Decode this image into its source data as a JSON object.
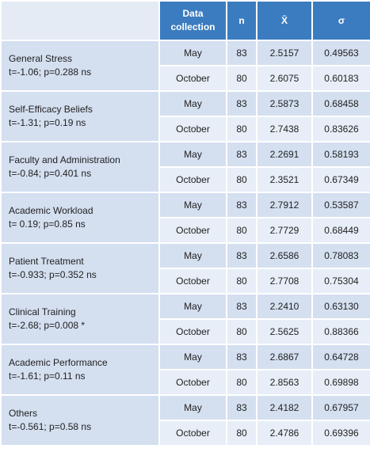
{
  "table": {
    "header": [
      "Data collection",
      "n",
      "X̄",
      "σ"
    ],
    "groups": [
      {
        "name": "General Stress",
        "stat": "t=-1.06; p=0.288 ns",
        "rows": [
          [
            "May",
            "83",
            "2.5157",
            "0.49563"
          ],
          [
            "October",
            "80",
            "2.6075",
            "0.60183"
          ]
        ]
      },
      {
        "name": "Self-Efficacy Beliefs",
        "stat": "t=-1.31; p=0.19 ns",
        "rows": [
          [
            "May",
            "83",
            "2.5873",
            "0.68458"
          ],
          [
            "October",
            "80",
            "2.7438",
            "0.83626"
          ]
        ]
      },
      {
        "name": "Faculty and Administration",
        "stat": "t=-0.84; p=0.401 ns",
        "rows": [
          [
            "May",
            "83",
            "2.2691",
            "0.58193"
          ],
          [
            "October",
            "80",
            "2.3521",
            "0.67349"
          ]
        ]
      },
      {
        "name": "Academic Workload",
        "stat": "t= 0.19; p=0.85 ns",
        "rows": [
          [
            "May",
            "83",
            "2.7912",
            "0.53587"
          ],
          [
            "October",
            "80",
            "2.7729",
            "0.68449"
          ]
        ]
      },
      {
        "name": "Patient Treatment",
        "stat": "t=-0.933; p=0.352 ns",
        "rows": [
          [
            "May",
            "83",
            "2.6586",
            "0.78083"
          ],
          [
            "October",
            "80",
            "2.7708",
            "0.75304"
          ]
        ]
      },
      {
        "name": "Clinical Training",
        "stat": "t=-2.68; p=0.008 *",
        "rows": [
          [
            "May",
            "83",
            "2.2410",
            "0.63130"
          ],
          [
            "October",
            "80",
            "2.5625",
            "0.88366"
          ]
        ]
      },
      {
        "name": "Academic Performance",
        "stat": "t=-1.61; p=0.11 ns",
        "rows": [
          [
            "May",
            "83",
            "2.6867",
            "0.64728"
          ],
          [
            "October",
            "80",
            "2.8563",
            "0.69898"
          ]
        ]
      },
      {
        "name": "Others",
        "stat": "t=-0.561; p=0.58 ns",
        "rows": [
          [
            "May",
            "83",
            "2.4182",
            "0.67957"
          ],
          [
            "October",
            "80",
            "2.4786",
            "0.69396"
          ]
        ]
      }
    ]
  }
}
